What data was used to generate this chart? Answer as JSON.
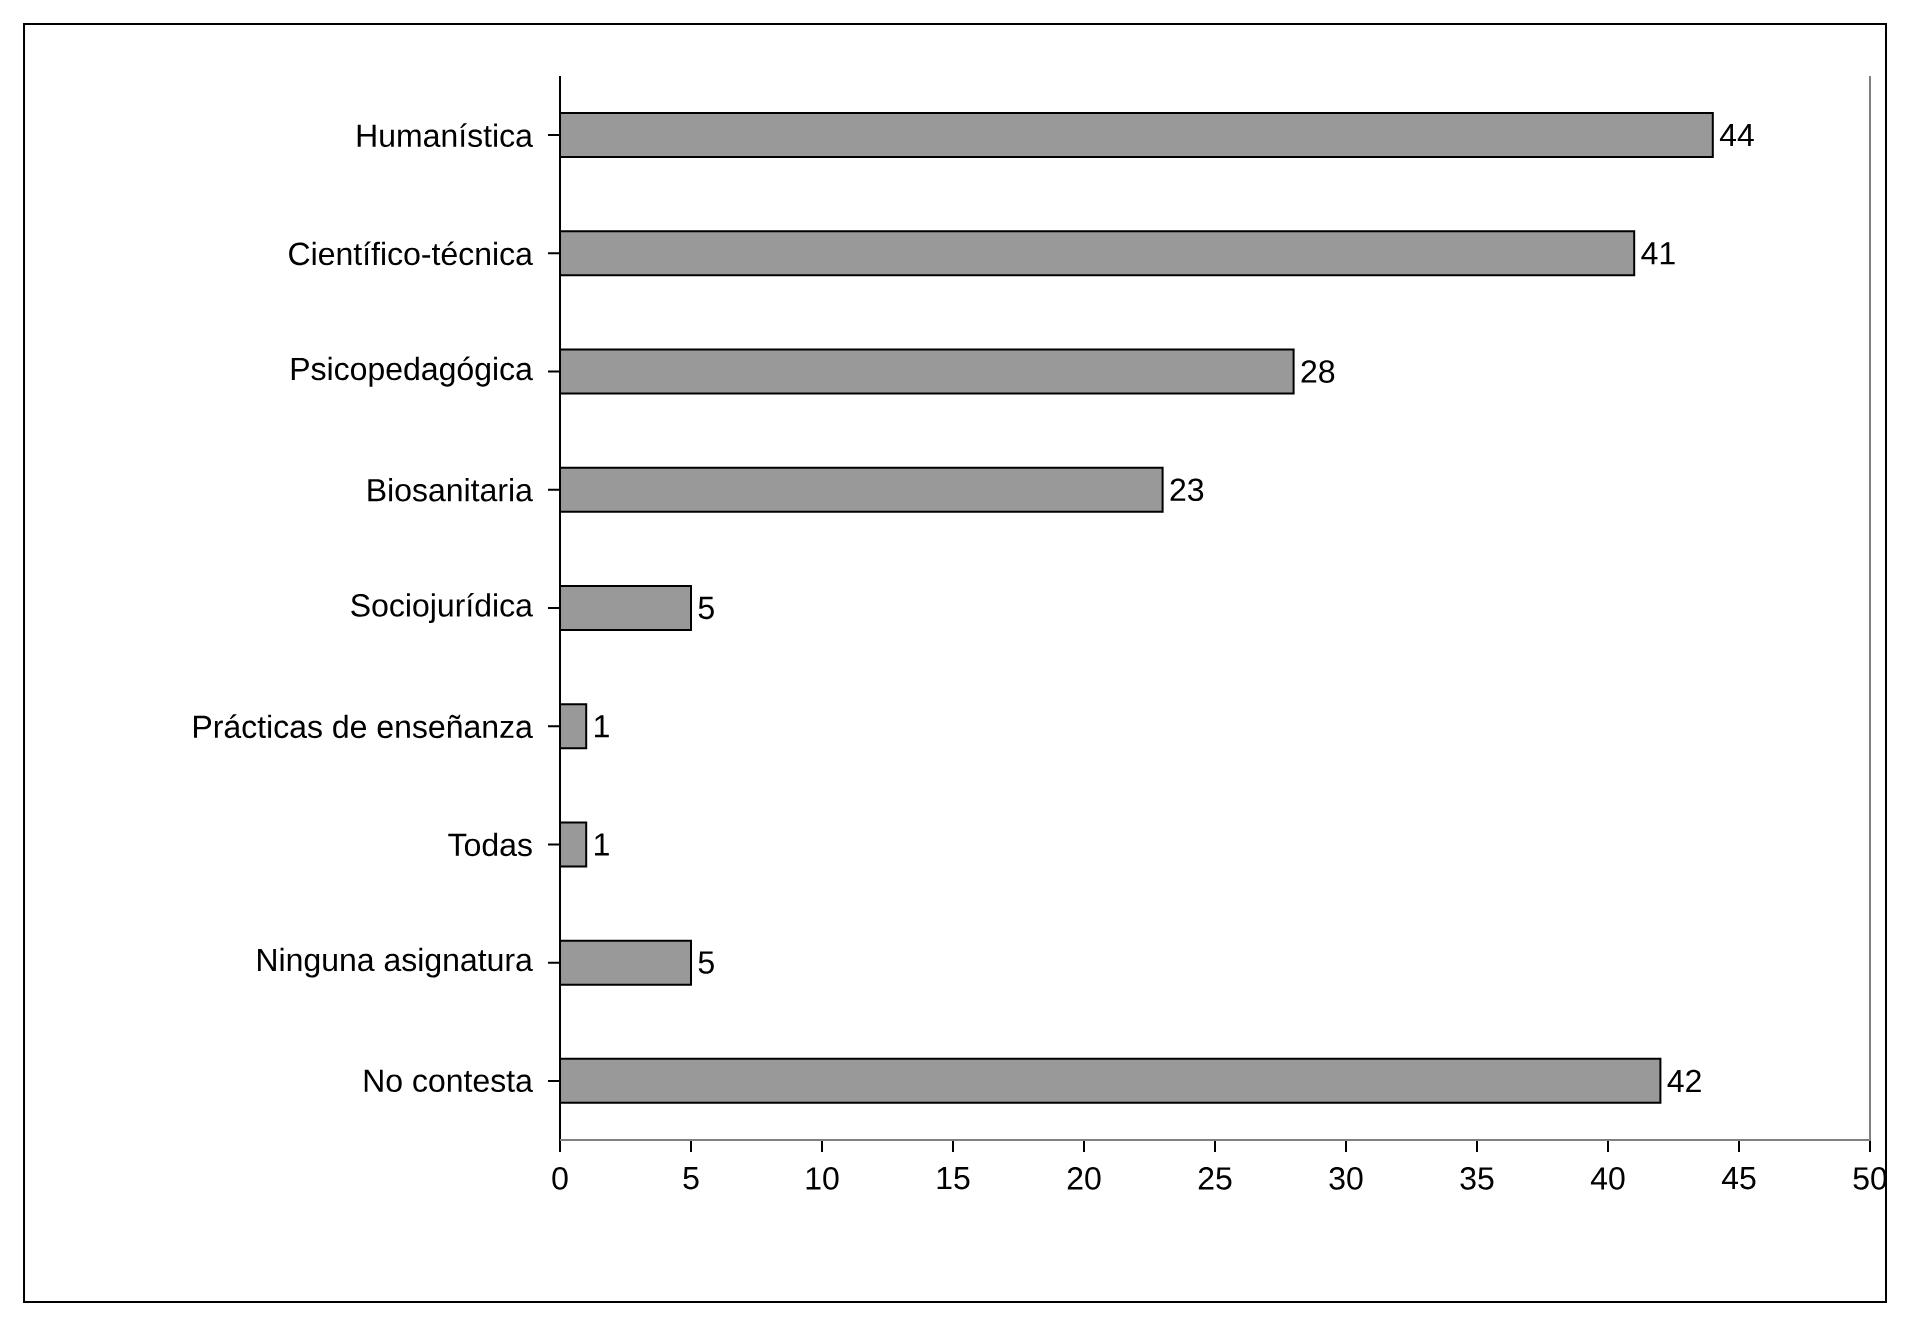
{
  "chart_data": {
    "type": "bar",
    "orientation": "horizontal",
    "categories": [
      "Humanística",
      "Científico-técnica",
      "Psicopedagógica",
      "Biosanitaria",
      "Sociojurídica",
      "Prácticas de enseñanza",
      "Todas",
      "Ninguna asignatura",
      "No contesta"
    ],
    "values": [
      44,
      41,
      28,
      23,
      5,
      1,
      1,
      5,
      42
    ],
    "color": "#999999",
    "xlim": [
      0,
      50
    ],
    "xticks": [
      0,
      5,
      10,
      15,
      20,
      25,
      30,
      35,
      40,
      45,
      50
    ],
    "data_labels": true
  }
}
